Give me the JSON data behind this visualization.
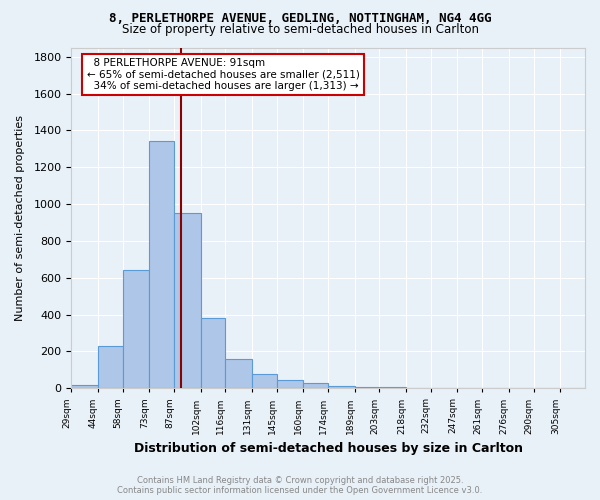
{
  "title1": "8, PERLETHORPE AVENUE, GEDLING, NOTTINGHAM, NG4 4GG",
  "title2": "Size of property relative to semi-detached houses in Carlton",
  "xlabel": "Distribution of semi-detached houses by size in Carlton",
  "ylabel": "Number of semi-detached properties",
  "property_size": 91,
  "property_label": "8 PERLETHORPE AVENUE: 91sqm",
  "pct_smaller": 65,
  "pct_larger": 34,
  "n_smaller": 2511,
  "n_larger": 1313,
  "bin_edges": [
    29,
    44,
    58,
    73,
    87,
    102,
    116,
    131,
    145,
    160,
    174,
    189,
    203,
    218,
    232,
    247,
    261,
    276,
    290,
    305,
    319
  ],
  "bar_heights": [
    20,
    230,
    640,
    1340,
    950,
    380,
    160,
    80,
    45,
    30,
    10,
    5,
    5,
    3,
    2,
    2,
    1,
    1,
    1,
    0
  ],
  "bar_color": "#aec6e8",
  "bar_edge_color": "#5b9bd5",
  "vline_color": "#8b0000",
  "vline_x": 91,
  "ylim": [
    0,
    1850
  ],
  "yticks": [
    0,
    200,
    400,
    600,
    800,
    1000,
    1200,
    1400,
    1600,
    1800
  ],
  "bg_color": "#e8f0f8",
  "grid_color": "#ffffff",
  "annotation_box_color": "#ffffff",
  "annotation_box_edge": "#cc0000",
  "footer1": "Contains HM Land Registry data © Crown copyright and database right 2025.",
  "footer2": "Contains public sector information licensed under the Open Government Licence v3.0."
}
